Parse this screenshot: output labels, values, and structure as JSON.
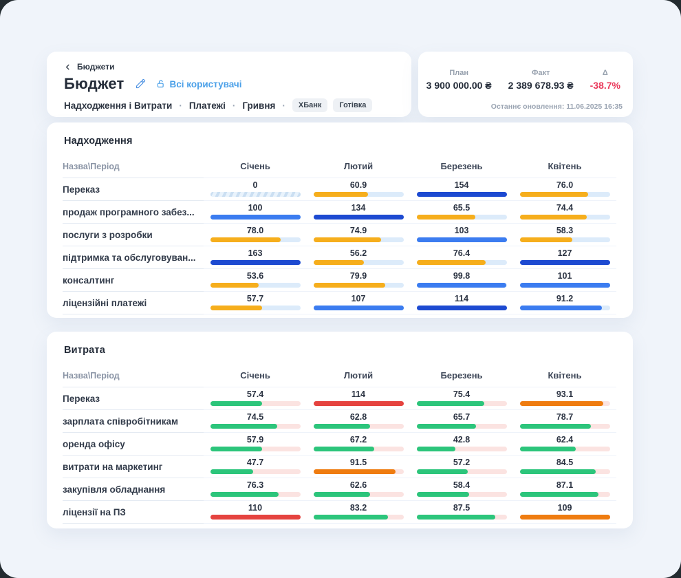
{
  "header": {
    "breadcrumb": "Бюджети",
    "title": "Бюджет",
    "share_label": "Всі користувачі",
    "filters": [
      "Надходження і Витрати",
      "Платежі",
      "Гривня"
    ],
    "dot": "·",
    "tags": [
      "ХБанк",
      "Готівка"
    ]
  },
  "summary": {
    "plan_label": "План",
    "plan_value": "3 900 000.00 ₴",
    "fact_label": "Факт",
    "fact_value": "2 389 678.93 ₴",
    "delta_label": "Δ",
    "delta_value": "-38.7%",
    "updated": "Останнє оновлення: 11.06.2025 16:35"
  },
  "columns": {
    "name_header": "Назва\\Період",
    "months": [
      "Січень",
      "Лютий",
      "Березень",
      "Квітень"
    ]
  },
  "sections": [
    {
      "id": "income",
      "title": "Надходження",
      "rows": [
        {
          "name": "Переказ",
          "cells": [
            {
              "d": "0",
              "v": 0
            },
            {
              "d": "60.9",
              "v": 60.9
            },
            {
              "d": "154",
              "v": 154
            },
            {
              "d": "76.0",
              "v": 76
            }
          ]
        },
        {
          "name": "продаж програмного забез...",
          "cells": [
            {
              "d": "100",
              "v": 100
            },
            {
              "d": "134",
              "v": 134
            },
            {
              "d": "65.5",
              "v": 65.5
            },
            {
              "d": "74.4",
              "v": 74.4
            }
          ]
        },
        {
          "name": "послуги з розробки",
          "cells": [
            {
              "d": "78.0",
              "v": 78
            },
            {
              "d": "74.9",
              "v": 74.9
            },
            {
              "d": "103",
              "v": 103
            },
            {
              "d": "58.3",
              "v": 58.3
            }
          ]
        },
        {
          "name": "підтримка та обслуговуван...",
          "cells": [
            {
              "d": "163",
              "v": 163
            },
            {
              "d": "56.2",
              "v": 56.2
            },
            {
              "d": "76.4",
              "v": 76.4
            },
            {
              "d": "127",
              "v": 127
            }
          ]
        },
        {
          "name": "консалтинг",
          "cells": [
            {
              "d": "53.6",
              "v": 53.6
            },
            {
              "d": "79.9",
              "v": 79.9
            },
            {
              "d": "99.8",
              "v": 99.8
            },
            {
              "d": "101",
              "v": 101
            }
          ]
        },
        {
          "name": "ліцензійні платежі",
          "cells": [
            {
              "d": "57.7",
              "v": 57.7
            },
            {
              "d": "107",
              "v": 107
            },
            {
              "d": "114",
              "v": 114
            },
            {
              "d": "91.2",
              "v": 91.2
            }
          ]
        }
      ]
    },
    {
      "id": "expense",
      "title": "Витрата",
      "rows": [
        {
          "name": "Переказ",
          "cells": [
            {
              "d": "57.4",
              "v": 57.4
            },
            {
              "d": "114",
              "v": 114
            },
            {
              "d": "75.4",
              "v": 75.4
            },
            {
              "d": "93.1",
              "v": 93.1
            }
          ]
        },
        {
          "name": "зарплата співробітникам",
          "cells": [
            {
              "d": "74.5",
              "v": 74.5
            },
            {
              "d": "62.8",
              "v": 62.8
            },
            {
              "d": "65.7",
              "v": 65.7
            },
            {
              "d": "78.7",
              "v": 78.7
            }
          ]
        },
        {
          "name": "оренда офісу",
          "cells": [
            {
              "d": "57.9",
              "v": 57.9
            },
            {
              "d": "67.2",
              "v": 67.2
            },
            {
              "d": "42.8",
              "v": 42.8
            },
            {
              "d": "62.4",
              "v": 62.4
            }
          ]
        },
        {
          "name": "витрати на маркетинг",
          "cells": [
            {
              "d": "47.7",
              "v": 47.7
            },
            {
              "d": "91.5",
              "v": 91.5
            },
            {
              "d": "57.2",
              "v": 57.2
            },
            {
              "d": "84.5",
              "v": 84.5
            }
          ]
        },
        {
          "name": "закупівля обладнання",
          "cells": [
            {
              "d": "76.3",
              "v": 76.3
            },
            {
              "d": "62.6",
              "v": 62.6
            },
            {
              "d": "58.4",
              "v": 58.4
            },
            {
              "d": "87.1",
              "v": 87.1
            }
          ]
        },
        {
          "name": "ліцензії на ПЗ",
          "cells": [
            {
              "d": "110",
              "v": 110
            },
            {
              "d": "83.2",
              "v": 83.2
            },
            {
              "d": "87.5",
              "v": 87.5
            },
            {
              "d": "109",
              "v": 109
            }
          ]
        }
      ]
    }
  ],
  "colors": {
    "income_low": "#f6ae1c",
    "income_mid": "#3b7cf0",
    "income_high": "#1d4ad1",
    "income_track": "#dcebfa",
    "expense_low": "#2cc57b",
    "expense_mid": "#ef7c10",
    "expense_high": "#e5433f",
    "expense_track": "#fbe3e1",
    "delta_negative": "#ea3a5c",
    "link_blue": "#4ba0e8"
  }
}
